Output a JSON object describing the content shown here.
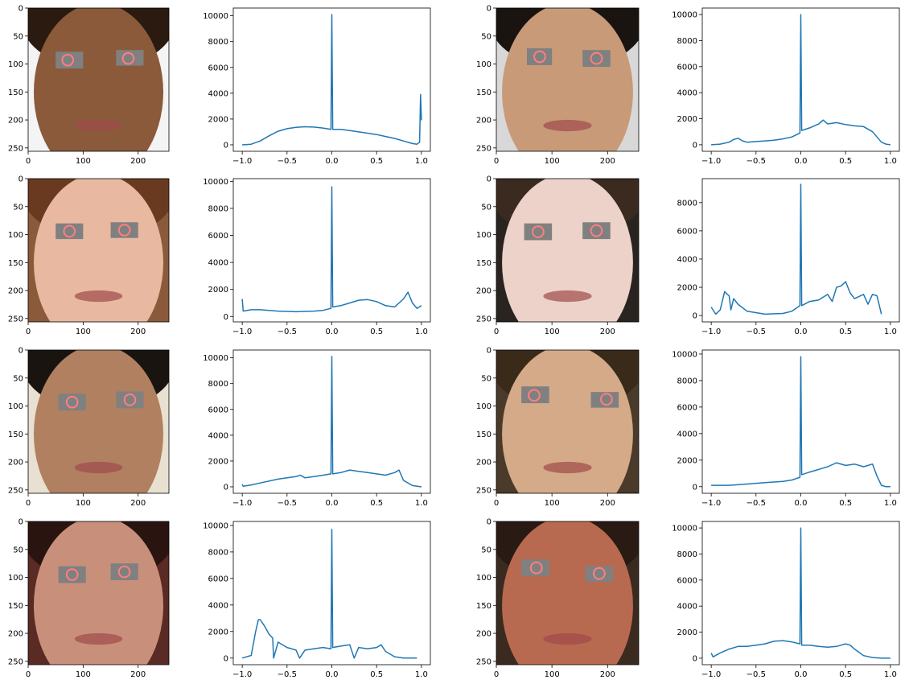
{
  "figure": {
    "rows": 4,
    "cols": 4,
    "line_color": "#1f77b4",
    "eye_patch_color": "#808080",
    "eye_circle_color": "#ff7f7f"
  },
  "chart_data": [
    {
      "type": "image",
      "xticks": [
        "0",
        "100",
        "200"
      ],
      "yticks": [
        "0",
        "50",
        "100",
        "150",
        "200",
        "250"
      ],
      "xlim": [
        0,
        256
      ],
      "ylim": [
        256,
        0
      ],
      "skin": "#8a5a3a",
      "hair": "#2a1a10",
      "background": "#f4f4f4",
      "eye_patches": [
        [
          50,
          78,
          100,
          108
        ],
        [
          160,
          75,
          210,
          103
        ]
      ],
      "eye_circles": [
        [
          72,
          93,
          10
        ],
        [
          182,
          90,
          10
        ]
      ]
    },
    {
      "type": "line",
      "x": [
        -1.0,
        -0.9,
        -0.8,
        -0.7,
        -0.6,
        -0.5,
        -0.4,
        -0.3,
        -0.2,
        -0.1,
        -0.01,
        0.0,
        0.01,
        0.1,
        0.2,
        0.3,
        0.4,
        0.5,
        0.6,
        0.7,
        0.8,
        0.9,
        0.95,
        0.98,
        0.99,
        1.0
      ],
      "y": [
        0,
        50,
        300,
        700,
        1050,
        1250,
        1350,
        1400,
        1380,
        1300,
        1200,
        10100,
        1200,
        1200,
        1100,
        1000,
        900,
        800,
        650,
        500,
        300,
        100,
        50,
        200,
        3900,
        1900
      ],
      "xticks": [
        "−1.0",
        "−0.5",
        "0.0",
        "0.5",
        "1.0"
      ],
      "yticks": [
        "0",
        "2000",
        "4000",
        "6000",
        "8000",
        "10000"
      ],
      "xlim": [
        -1.1,
        1.1
      ],
      "ylim": [
        -500,
        10600
      ]
    },
    {
      "type": "image",
      "xticks": [
        "0",
        "100",
        "200"
      ],
      "yticks": [
        "0",
        "50",
        "100",
        "150",
        "200",
        "250"
      ],
      "xlim": [
        0,
        256
      ],
      "ylim": [
        256,
        0
      ],
      "skin": "#c89a78",
      "hair": "#1a1410",
      "background": "#d8d8d8",
      "eye_patches": [
        [
          55,
          72,
          100,
          102
        ],
        [
          155,
          75,
          205,
          105
        ]
      ],
      "eye_circles": [
        [
          78,
          87,
          10
        ],
        [
          180,
          90,
          10
        ]
      ]
    },
    {
      "type": "line",
      "x": [
        -1.0,
        -0.9,
        -0.8,
        -0.75,
        -0.7,
        -0.65,
        -0.6,
        -0.5,
        -0.4,
        -0.3,
        -0.2,
        -0.1,
        -0.01,
        0.0,
        0.01,
        0.1,
        0.2,
        0.25,
        0.3,
        0.4,
        0.5,
        0.6,
        0.7,
        0.8,
        0.9,
        0.95,
        1.0
      ],
      "y": [
        0,
        50,
        200,
        400,
        500,
        300,
        200,
        250,
        300,
        350,
        450,
        600,
        900,
        10000,
        1100,
        1300,
        1600,
        1900,
        1600,
        1700,
        1550,
        1450,
        1400,
        1000,
        200,
        50,
        0
      ],
      "xticks": [
        "−1.0",
        "−0.5",
        "0.0",
        "0.5",
        "1.0"
      ],
      "yticks": [
        "0",
        "2000",
        "4000",
        "6000",
        "8000",
        "10000"
      ],
      "xlim": [
        -1.1,
        1.1
      ],
      "ylim": [
        -500,
        10500
      ]
    },
    {
      "type": "image",
      "xticks": [
        "0",
        "100",
        "200"
      ],
      "yticks": [
        "0",
        "50",
        "100",
        "150",
        "200",
        "250"
      ],
      "xlim": [
        0,
        256
      ],
      "ylim": [
        256,
        0
      ],
      "skin": "#e8b8a0",
      "hair": "#6a3a20",
      "background": "#8a5a3a",
      "eye_patches": [
        [
          50,
          80,
          100,
          108
        ],
        [
          150,
          78,
          200,
          106
        ]
      ],
      "eye_circles": [
        [
          75,
          94,
          10
        ],
        [
          175,
          92,
          10
        ]
      ]
    },
    {
      "type": "line",
      "x": [
        -1.0,
        -0.99,
        -0.9,
        -0.8,
        -0.6,
        -0.4,
        -0.2,
        -0.1,
        -0.01,
        0.0,
        0.01,
        0.1,
        0.2,
        0.3,
        0.4,
        0.5,
        0.6,
        0.7,
        0.8,
        0.85,
        0.9,
        0.95,
        1.0
      ],
      "y": [
        1300,
        400,
        500,
        500,
        400,
        350,
        400,
        450,
        600,
        9600,
        700,
        800,
        1000,
        1200,
        1250,
        1100,
        800,
        700,
        1300,
        1800,
        1000,
        600,
        800
      ],
      "xticks": [
        "−1.0",
        "−0.5",
        "0.0",
        "0.5",
        "1.0"
      ],
      "yticks": [
        "0",
        "2000",
        "4000",
        "6000",
        "8000",
        "10000"
      ],
      "xlim": [
        -1.1,
        1.1
      ],
      "ylim": [
        -400,
        10200
      ]
    },
    {
      "type": "image",
      "xticks": [
        "0",
        "100",
        "200"
      ],
      "yticks": [
        "0",
        "50",
        "100",
        "150",
        "200",
        "250"
      ],
      "xlim": [
        0,
        256
      ],
      "ylim": [
        256,
        0
      ],
      "skin": "#ecd2c8",
      "hair": "#3a2a20",
      "background": "#2a2420",
      "eye_patches": [
        [
          50,
          80,
          100,
          110
        ],
        [
          155,
          78,
          205,
          108
        ]
      ],
      "eye_circles": [
        [
          75,
          95,
          10
        ],
        [
          180,
          93,
          10
        ]
      ]
    },
    {
      "type": "line",
      "x": [
        -1.0,
        -0.95,
        -0.9,
        -0.85,
        -0.82,
        -0.8,
        -0.78,
        -0.75,
        -0.7,
        -0.6,
        -0.4,
        -0.2,
        -0.1,
        -0.01,
        0.0,
        0.01,
        0.1,
        0.2,
        0.3,
        0.35,
        0.4,
        0.45,
        0.5,
        0.55,
        0.6,
        0.7,
        0.75,
        0.8,
        0.85,
        0.9
      ],
      "y": [
        600,
        100,
        400,
        1700,
        1500,
        1400,
        400,
        1200,
        800,
        300,
        100,
        150,
        300,
        700,
        9300,
        700,
        1000,
        1100,
        1500,
        1000,
        2000,
        2100,
        2400,
        1600,
        1200,
        1500,
        800,
        1500,
        1400,
        100
      ],
      "xticks": [
        "−1.0",
        "−0.5",
        "0.0",
        "0.5",
        "1.0"
      ],
      "yticks": [
        "0",
        "2000",
        "4000",
        "6000",
        "8000"
      ],
      "xlim": [
        -1.1,
        1.1
      ],
      "ylim": [
        -450,
        9700
      ]
    },
    {
      "type": "image",
      "xticks": [
        "0",
        "100",
        "200"
      ],
      "yticks": [
        "0",
        "50",
        "100",
        "150",
        "200",
        "250"
      ],
      "xlim": [
        0,
        256
      ],
      "ylim": [
        256,
        0
      ],
      "skin": "#b08060",
      "hair": "#1a1410",
      "background": "#e8e0d0",
      "eye_patches": [
        [
          55,
          78,
          105,
          108
        ],
        [
          160,
          74,
          210,
          104
        ]
      ],
      "eye_circles": [
        [
          80,
          93,
          10
        ],
        [
          185,
          89,
          10
        ]
      ]
    },
    {
      "type": "line",
      "x": [
        -1.0,
        -0.99,
        -0.9,
        -0.8,
        -0.6,
        -0.5,
        -0.4,
        -0.35,
        -0.3,
        -0.2,
        -0.1,
        -0.01,
        0.0,
        0.01,
        0.1,
        0.2,
        0.3,
        0.4,
        0.5,
        0.6,
        0.7,
        0.75,
        0.8,
        0.9,
        1.0
      ],
      "y": [
        200,
        50,
        150,
        300,
        600,
        700,
        800,
        900,
        700,
        800,
        900,
        1000,
        10100,
        1000,
        1100,
        1300,
        1200,
        1100,
        1000,
        900,
        1100,
        1300,
        500,
        100,
        0
      ],
      "xticks": [
        "−1.0",
        "−0.5",
        "0.0",
        "0.5",
        "1.0"
      ],
      "yticks": [
        "0",
        "2000",
        "4000",
        "6000",
        "8000",
        "10000"
      ],
      "xlim": [
        -1.1,
        1.1
      ],
      "ylim": [
        -500,
        10600
      ]
    },
    {
      "type": "image",
      "xticks": [
        "0",
        "100",
        "200"
      ],
      "yticks": [
        "0",
        "50",
        "100",
        "150",
        "200",
        "250"
      ],
      "xlim": [
        0,
        256
      ],
      "ylim": [
        256,
        0
      ],
      "skin": "#d4aa88",
      "hair": "#3a2a1a",
      "background": "#4a3a2a",
      "eye_patches": [
        [
          45,
          65,
          95,
          95
        ],
        [
          170,
          75,
          220,
          103
        ]
      ],
      "eye_circles": [
        [
          68,
          81,
          10
        ],
        [
          198,
          88,
          10
        ]
      ]
    },
    {
      "type": "line",
      "x": [
        -1.0,
        -0.9,
        -0.8,
        -0.6,
        -0.4,
        -0.2,
        -0.1,
        -0.01,
        0.0,
        0.01,
        0.1,
        0.2,
        0.3,
        0.4,
        0.5,
        0.6,
        0.7,
        0.8,
        0.85,
        0.9,
        0.95,
        1.0
      ],
      "y": [
        100,
        100,
        100,
        200,
        300,
        400,
        500,
        700,
        9800,
        900,
        1100,
        1300,
        1500,
        1800,
        1600,
        1700,
        1500,
        1700,
        800,
        100,
        0,
        0
      ],
      "xticks": [
        "−1.0",
        "−0.5",
        "0.0",
        "0.5",
        "1.0"
      ],
      "yticks": [
        "0",
        "2000",
        "4000",
        "6000",
        "8000",
        "10000"
      ],
      "xlim": [
        -1.1,
        1.1
      ],
      "ylim": [
        -500,
        10300
      ]
    },
    {
      "type": "image",
      "xticks": [
        "0",
        "100",
        "200"
      ],
      "yticks": [
        "0",
        "50",
        "100",
        "150",
        "200",
        "250"
      ],
      "xlim": [
        0,
        256
      ],
      "ylim": [
        256,
        0
      ],
      "skin": "#c8907a",
      "hair": "#2a1410",
      "background": "#5a2a24",
      "eye_patches": [
        [
          55,
          80,
          105,
          110
        ],
        [
          150,
          75,
          200,
          105
        ]
      ],
      "eye_circles": [
        [
          80,
          95,
          10
        ],
        [
          175,
          90,
          10
        ]
      ]
    },
    {
      "type": "line",
      "x": [
        -1.0,
        -0.9,
        -0.85,
        -0.82,
        -0.8,
        -0.75,
        -0.7,
        -0.66,
        -0.65,
        -0.6,
        -0.5,
        -0.4,
        -0.36,
        -0.3,
        -0.2,
        -0.1,
        -0.01,
        0.0,
        0.01,
        0.1,
        0.2,
        0.25,
        0.3,
        0.4,
        0.5,
        0.55,
        0.6,
        0.7,
        0.8,
        0.95
      ],
      "y": [
        0,
        200,
        2000,
        2900,
        2900,
        2400,
        1800,
        1500,
        0,
        1200,
        800,
        600,
        0,
        600,
        700,
        800,
        700,
        9700,
        800,
        900,
        1000,
        0,
        800,
        700,
        800,
        1000,
        500,
        100,
        0,
        0
      ],
      "xticks": [
        "−1.0",
        "−0.5",
        "0.0",
        "0.5",
        "1.0"
      ],
      "yticks": [
        "0",
        "2000",
        "4000",
        "6000",
        "8000",
        "10000"
      ],
      "xlim": [
        -1.1,
        1.1
      ],
      "ylim": [
        -500,
        10300
      ]
    },
    {
      "type": "image",
      "xticks": [
        "0",
        "100",
        "200"
      ],
      "yticks": [
        "0",
        "50",
        "100",
        "150",
        "200",
        "250"
      ],
      "xlim": [
        0,
        256
      ],
      "ylim": [
        256,
        0
      ],
      "skin": "#b86a50",
      "hair": "#2a1a14",
      "background": "#3a2a20",
      "eye_patches": [
        [
          45,
          68,
          95,
          98
        ],
        [
          160,
          80,
          210,
          108
        ]
      ],
      "eye_circles": [
        [
          72,
          83,
          10
        ],
        [
          185,
          93,
          10
        ]
      ]
    },
    {
      "type": "line",
      "x": [
        -1.0,
        -0.98,
        -0.9,
        -0.8,
        -0.7,
        -0.6,
        -0.5,
        -0.4,
        -0.3,
        -0.2,
        -0.1,
        -0.01,
        0.0,
        0.01,
        0.1,
        0.2,
        0.3,
        0.4,
        0.45,
        0.5,
        0.55,
        0.6,
        0.7,
        0.8,
        0.9,
        1.0
      ],
      "y": [
        400,
        100,
        400,
        700,
        900,
        900,
        1000,
        1100,
        1300,
        1350,
        1250,
        1100,
        10000,
        1000,
        1000,
        900,
        850,
        900,
        1000,
        1100,
        1000,
        700,
        200,
        50,
        0,
        0
      ],
      "xticks": [
        "−1.0",
        "−0.5",
        "0.0",
        "0.5",
        "1.0"
      ],
      "yticks": [
        "0",
        "2000",
        "4000",
        "6000",
        "8000",
        "10000"
      ],
      "xlim": [
        -1.1,
        1.1
      ],
      "ylim": [
        -500,
        10500
      ]
    }
  ]
}
